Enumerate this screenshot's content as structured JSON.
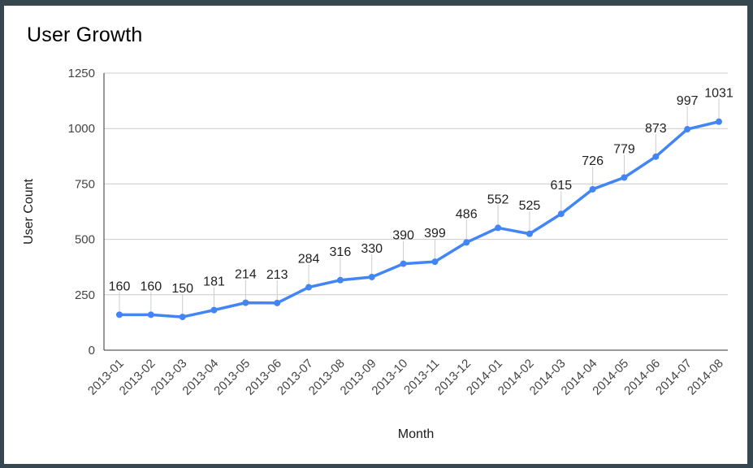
{
  "frame": {
    "border_color": "#37474f",
    "background_color": "#ffffff"
  },
  "chart_data": {
    "type": "line",
    "title": "User Growth",
    "xlabel": "Month",
    "ylabel": "User Count",
    "categories": [
      "2013-01",
      "2013-02",
      "2013-03",
      "2013-04",
      "2013-05",
      "2013-06",
      "2013-07",
      "2013-08",
      "2013-09",
      "2013-10",
      "2013-11",
      "2013-12",
      "2014-01",
      "2014-02",
      "2014-03",
      "2014-04",
      "2014-05",
      "2014-06",
      "2014-07",
      "2014-08"
    ],
    "values": [
      160,
      160,
      150,
      181,
      214,
      213,
      284,
      316,
      330,
      390,
      399,
      486,
      552,
      525,
      615,
      726,
      779,
      873,
      997,
      1031
    ],
    "annotations": [
      "160",
      "160",
      "150",
      "181",
      "214",
      "213",
      "284",
      "316",
      "330",
      "390",
      "399",
      "486",
      "552",
      "525",
      "615",
      "726",
      "779",
      "873",
      "997",
      "1031"
    ],
    "ylim": [
      0,
      1250
    ],
    "yticks": [
      0,
      250,
      500,
      750,
      1000,
      1250
    ],
    "grid": true,
    "legend": "none",
    "colors": {
      "series": "#4285f4",
      "gridline": "#cccccc",
      "axis_line": "#333333",
      "tick_label": "#444444",
      "annotation_text": "#212121",
      "annotation_stem": "#cccccc",
      "axis_title": "#1a1a1a"
    }
  }
}
